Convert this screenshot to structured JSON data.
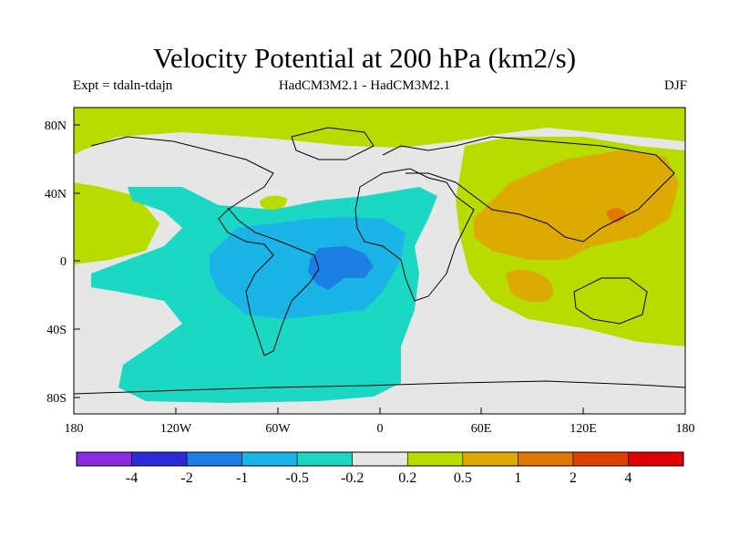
{
  "title": "Velocity Potential at 200 hPa (km2/s)",
  "experiment": "Expt = tdaln-tdajn",
  "model": "HadCM3M2.1 - HadCM3M2.1",
  "season": "DJF",
  "lat_labels": [
    "80N",
    "40N",
    "0",
    "40S",
    "80S"
  ],
  "lon_labels": [
    "180",
    "120W",
    "60W",
    "0",
    "60E",
    "120E",
    "180"
  ],
  "colorbar": {
    "colors": [
      "#8a2be2",
      "#2b2bd9",
      "#1b7fe3",
      "#1ab4e6",
      "#1ad8c4",
      "#e6e6e6",
      "#b8dc00",
      "#dcaa00",
      "#e07800",
      "#e04000",
      "#e00000"
    ],
    "labels": [
      "-4",
      "-2",
      "-1",
      "-0.5",
      "-0.2",
      "0.2",
      "0.5",
      "1",
      "2",
      "4"
    ]
  },
  "palette": {
    "neutral": "#e6e6e6",
    "pos1": "#b8dc00",
    "pos2": "#dcaa00",
    "pos3": "#e07800",
    "neg1": "#1ad8c4",
    "neg2": "#1ab4e6",
    "neg3": "#1b7fe3"
  }
}
